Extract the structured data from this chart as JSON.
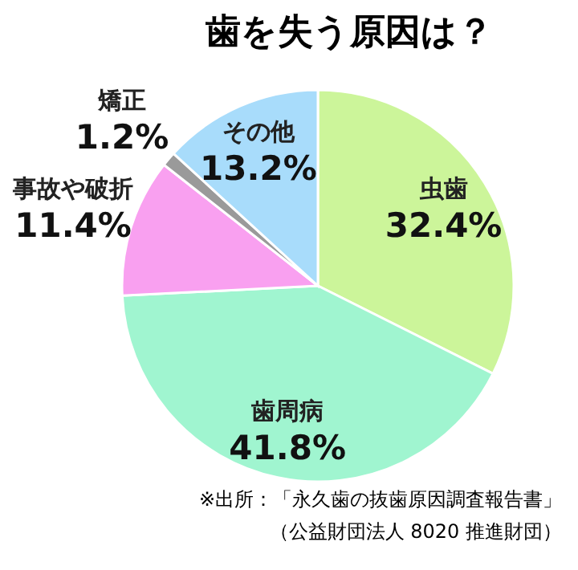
{
  "chart_data": {
    "type": "pie",
    "title": "歯を失う原因は？",
    "categories": [
      "虫歯",
      "歯周病",
      "事故や破折",
      "矯正",
      "その他"
    ],
    "values": [
      32.4,
      41.8,
      11.4,
      1.2,
      13.2
    ],
    "value_labels": [
      "32.4%",
      "41.8%",
      "11.4%",
      "1.2%",
      "13.2%"
    ],
    "colors": [
      "#ccf59a",
      "#a0f5d0",
      "#f9a0f0",
      "#9a9a9a",
      "#a8dcfb"
    ],
    "annotations": [
      "※出所：「永久歯の抜歯原因調査報告書」",
      "（公益財団法人 8020 推進財団）"
    ]
  }
}
